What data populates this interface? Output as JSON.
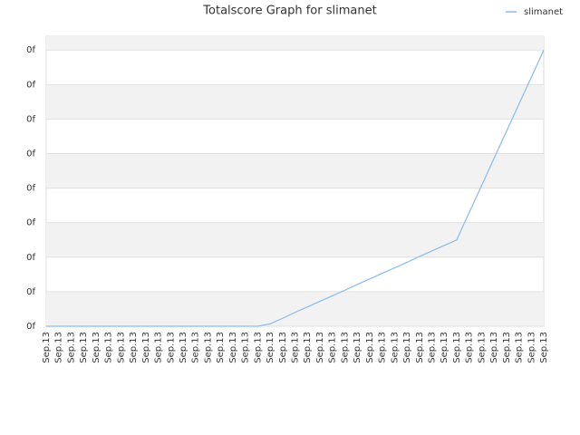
{
  "chart_data": {
    "type": "line",
    "title": "Totalscore Graph for slimanet",
    "categories": [
      "Sep.13",
      "Sep.13",
      "Sep.13",
      "Sep.13",
      "Sep.13",
      "Sep.13",
      "Sep.13",
      "Sep.13",
      "Sep.13",
      "Sep.13",
      "Sep.13",
      "Sep.13",
      "Sep.13",
      "Sep.13",
      "Sep.13",
      "Sep.13",
      "Sep.13",
      "Sep.13",
      "Sep.13",
      "Sep.13",
      "Sep.13",
      "Sep.13",
      "Sep.13",
      "Sep.13",
      "Sep.13",
      "Sep.13",
      "Sep.13",
      "Sep.13",
      "Sep.13",
      "Sep.13",
      "Sep.13",
      "Sep.13",
      "Sep.13",
      "Sep.13",
      "Sep.13",
      "Sep.13",
      "Sep.13",
      "Sep.13",
      "Sep.13",
      "Sep.13",
      "Sep.13"
    ],
    "series": [
      {
        "name": "slimanet",
        "color": "#88bbee",
        "values": [
          0,
          0,
          0,
          0,
          0,
          0,
          0,
          0,
          0,
          0,
          0,
          0,
          0,
          0,
          0,
          0,
          0,
          0,
          0.07,
          0.23,
          0.4,
          0.56,
          0.72,
          0.88,
          1.04,
          1.21,
          1.37,
          1.53,
          1.69,
          1.85,
          2.02,
          2.18,
          2.34,
          2.5,
          3.29,
          4.07,
          4.86,
          5.64,
          6.43,
          7.21,
          8
        ]
      }
    ],
    "ylim": [
      0,
      8.4
    ],
    "yticks": [
      {
        "value": 0,
        "label": "0f"
      },
      {
        "value": 1,
        "label": "0f"
      },
      {
        "value": 2,
        "label": "0f"
      },
      {
        "value": 3,
        "label": "0f"
      },
      {
        "value": 4,
        "label": "0f"
      },
      {
        "value": 5,
        "label": "0f"
      },
      {
        "value": 6,
        "label": "0f"
      },
      {
        "value": 7,
        "label": "0f"
      },
      {
        "value": 8,
        "label": "0f"
      }
    ],
    "grid": true,
    "legend": "top-right"
  }
}
